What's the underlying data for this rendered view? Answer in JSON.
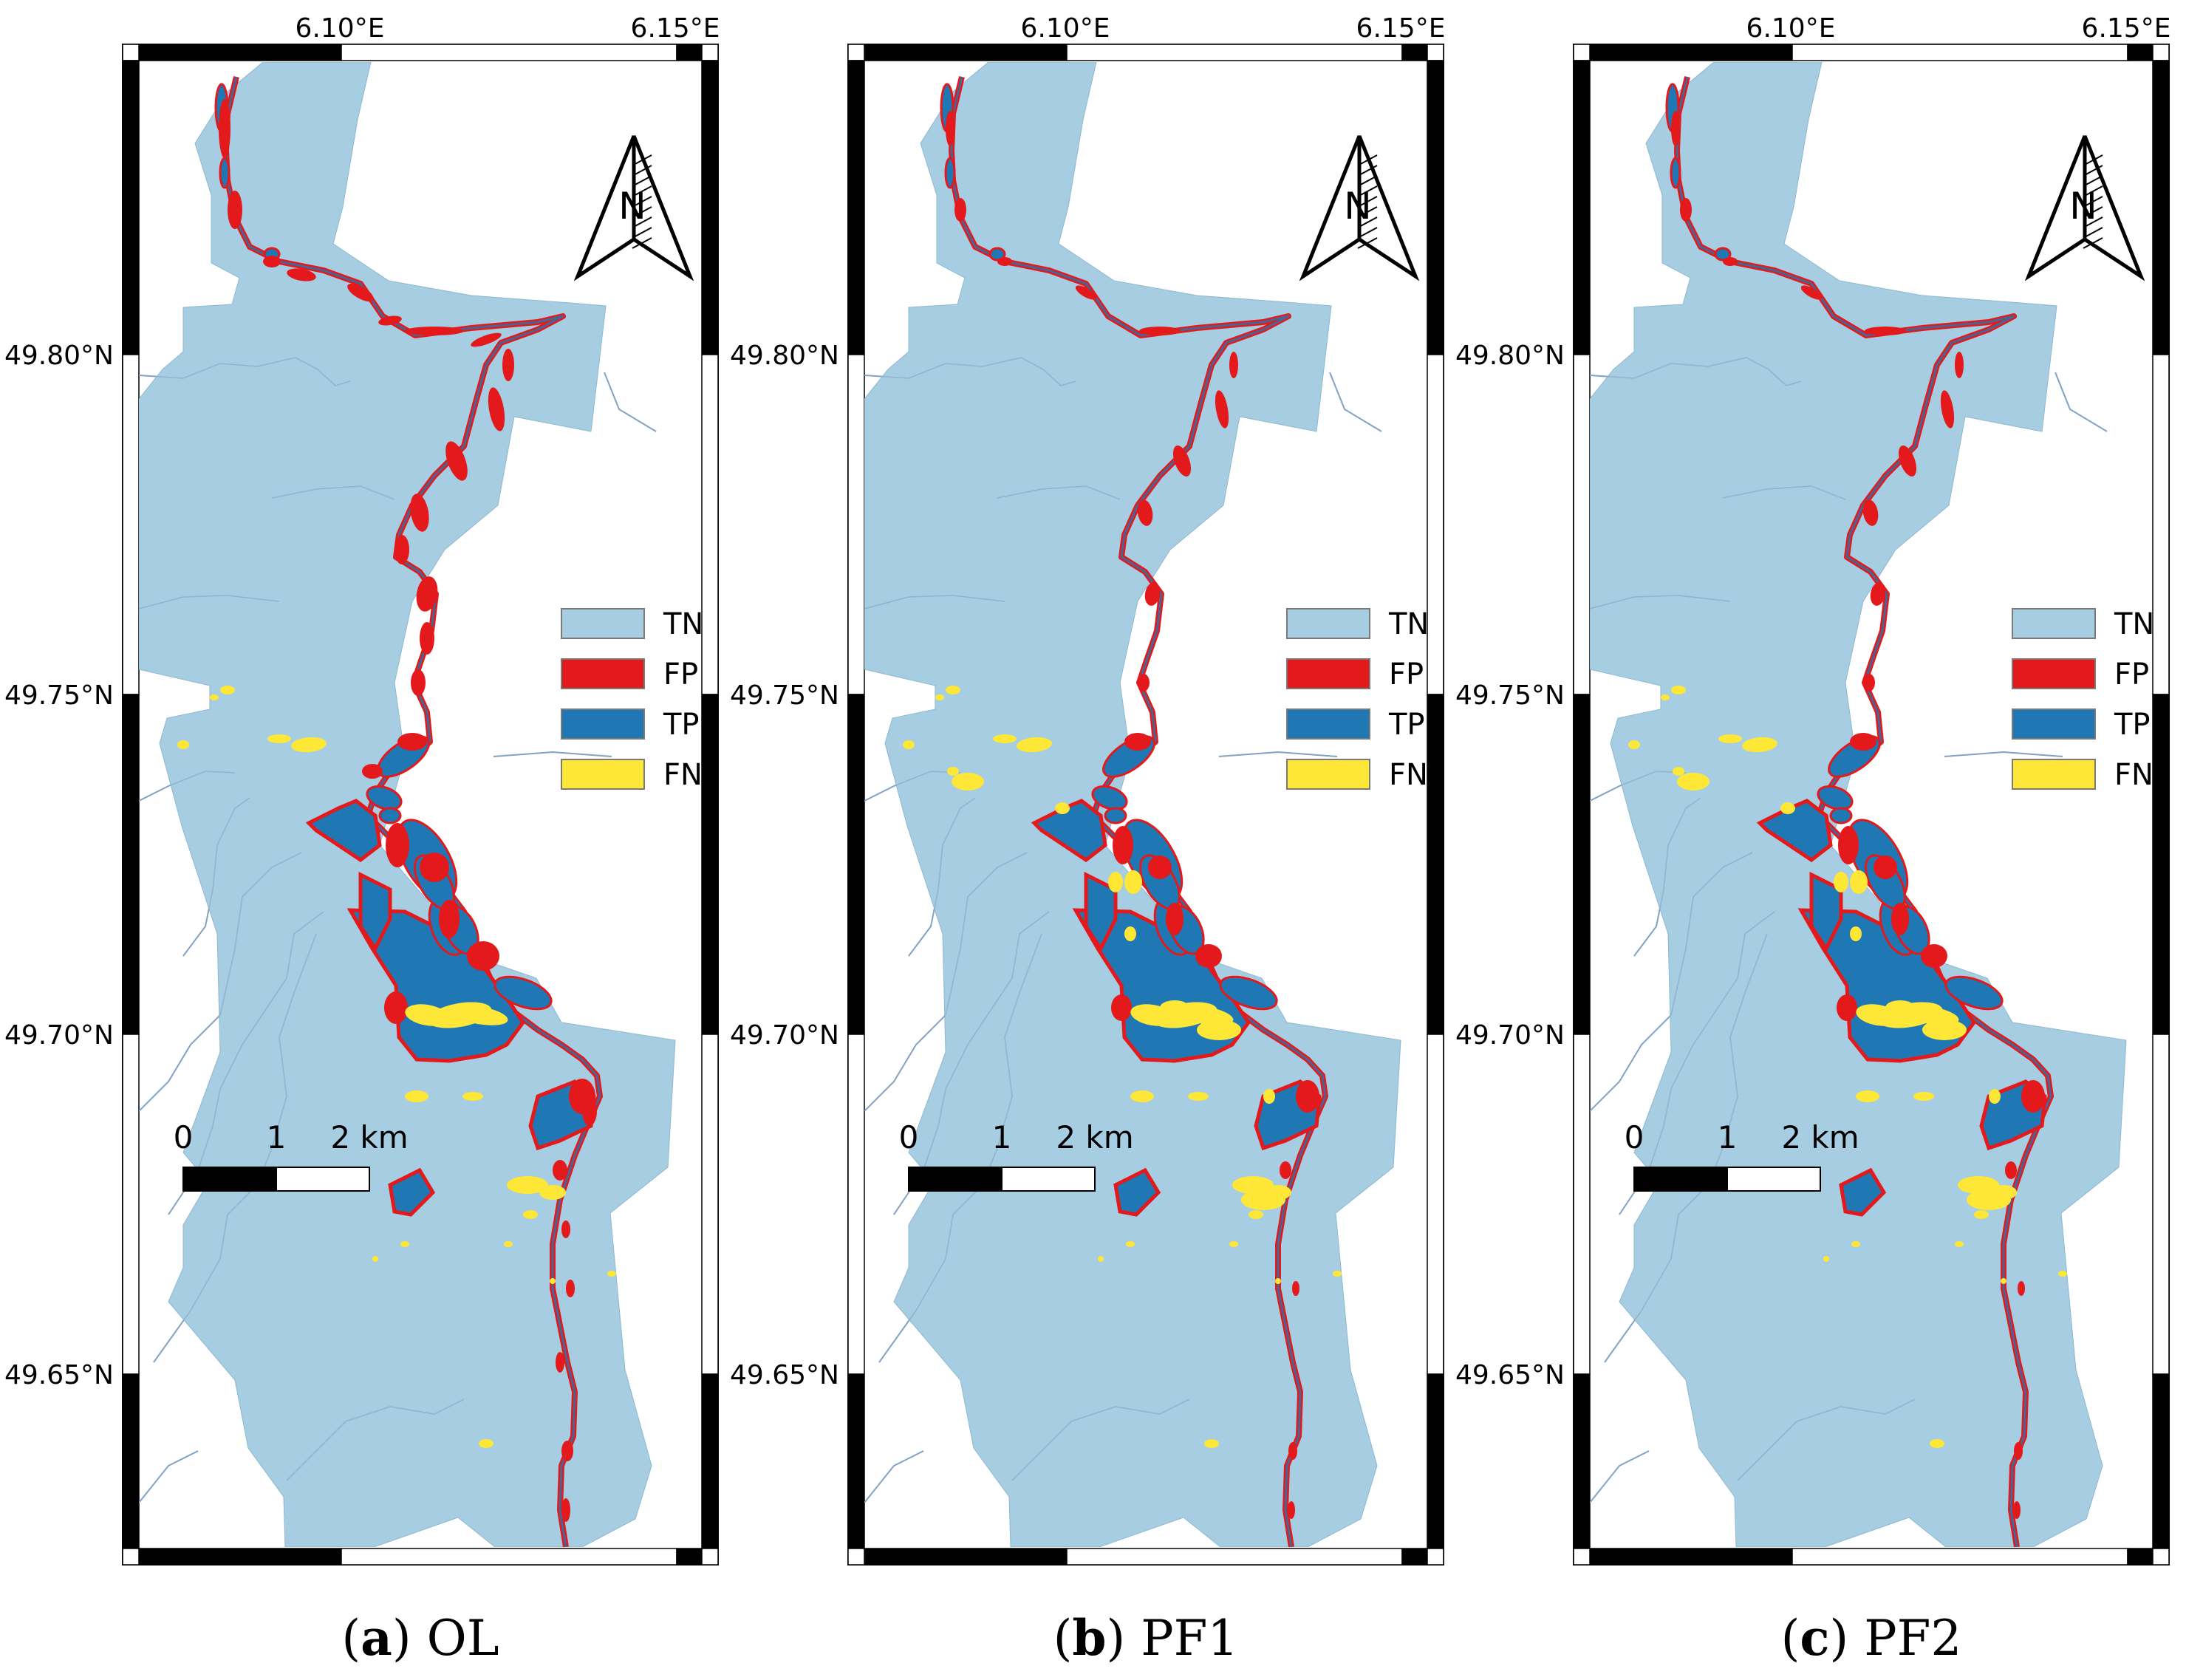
{
  "colors": {
    "tn": "#a6cde2",
    "fp": "#e3191c",
    "tp": "#1f78b4",
    "fn": "#ffe738",
    "stream": "#7a9cc0",
    "frame": "#000000"
  },
  "map_axes": {
    "lon_ticks": [
      "6.10°E",
      "6.15°E"
    ],
    "lat_ticks": [
      "49.80°N",
      "49.75°N",
      "49.70°N",
      "49.65°N"
    ]
  },
  "north_arrow_label": "N",
  "legend": [
    {
      "key": "tn",
      "label": "TN"
    },
    {
      "key": "fp",
      "label": "FP"
    },
    {
      "key": "tp",
      "label": "TP"
    },
    {
      "key": "fn",
      "label": "FN"
    }
  ],
  "scale_bar": {
    "labels": [
      "0",
      "1",
      "2 km"
    ]
  },
  "panels": [
    {
      "id": "a",
      "letter": "a",
      "method": "OL"
    },
    {
      "id": "b",
      "letter": "b",
      "method": "PF1"
    },
    {
      "id": "c",
      "letter": "c",
      "method": "PF2"
    }
  ]
}
